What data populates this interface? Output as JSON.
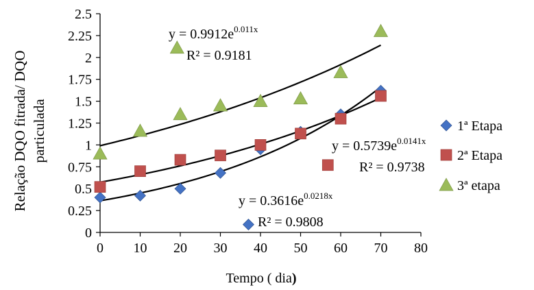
{
  "chart_data": {
    "type": "scatter",
    "xlabel_main": "Tempo ( dia",
    "xlabel_paren": ")",
    "ylabel_lines": [
      "Relação DQO fitrada/ DQO",
      "particulada"
    ],
    "xlim": [
      0,
      80
    ],
    "ylim": [
      0,
      2.5
    ],
    "x_ticks": [
      0,
      10,
      20,
      30,
      40,
      50,
      60,
      70,
      80
    ],
    "x_tick_labels": [
      "0",
      "10",
      "20",
      "30",
      "40",
      "50",
      "60",
      "70",
      "80"
    ],
    "y_ticks": [
      0,
      0.25,
      0.5,
      0.75,
      1,
      1.25,
      1.5,
      1.75,
      2,
      2.25,
      2.5
    ],
    "y_tick_labels": [
      "0",
      "0.25",
      "0.5",
      "0.75",
      "1",
      "1.25",
      "1.5",
      "1.75",
      "2",
      "2.25",
      "2.5"
    ],
    "grid": false,
    "legend_position": "right",
    "series": [
      {
        "name": "1ª Etapa",
        "marker": "diamond",
        "color": "#4472C4",
        "x": [
          0,
          10,
          20,
          30,
          40,
          50,
          60,
          70
        ],
        "y": [
          0.4,
          0.42,
          0.5,
          0.68,
          0.95,
          1.15,
          1.35,
          1.62
        ],
        "trendline": {
          "a": 0.3616,
          "b": 0.0218,
          "equation_prefix": "y = 0.3616e",
          "equation_exponent": "0.0218x",
          "r2": "R² = 0.9808"
        }
      },
      {
        "name": "2ª Etapa",
        "marker": "square",
        "color": "#C0504D",
        "x": [
          0,
          10,
          20,
          30,
          40,
          50,
          60,
          70
        ],
        "y": [
          0.52,
          0.7,
          0.83,
          0.88,
          1.0,
          1.13,
          1.3,
          1.56
        ],
        "trendline": {
          "a": 0.5739,
          "b": 0.0141,
          "equation_prefix": "y = 0.5739e",
          "equation_exponent": "0.0141x",
          "r2": "R² = 0.9738"
        }
      },
      {
        "name": "3ª etapa",
        "marker": "triangle",
        "color": "#9BBB59",
        "x": [
          0,
          10,
          20,
          30,
          40,
          50,
          60,
          70
        ],
        "y": [
          0.9,
          1.16,
          1.35,
          1.45,
          1.5,
          1.53,
          1.83,
          2.3
        ],
        "trendline": {
          "a": 0.9912,
          "b": 0.011,
          "equation_prefix": "y = 0.9912e",
          "equation_exponent": "0.011x",
          "r2": "R² = 0.9181"
        }
      }
    ],
    "stray_markers": [
      {
        "marker": "triangle",
        "color": "#9BBB59",
        "x": 19.2,
        "y": 2.11
      },
      {
        "marker": "square",
        "color": "#C0504D",
        "x": 56.8,
        "y": 0.77
      },
      {
        "marker": "diamond",
        "color": "#4472C4",
        "x": 37.0,
        "y": 0.09
      }
    ]
  }
}
